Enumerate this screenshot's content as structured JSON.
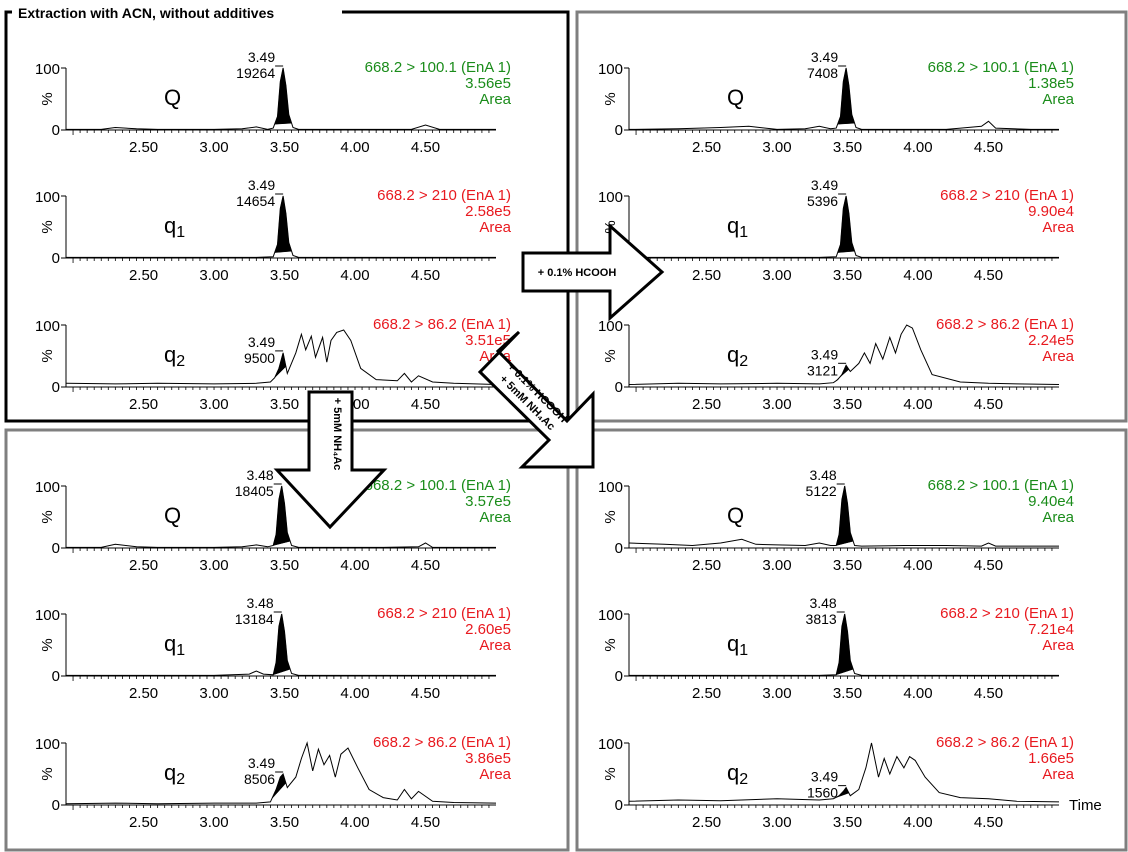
{
  "panel_title": "Extraction with ACN, without additives",
  "arrows": {
    "right": "+ 0.1% HCOOH",
    "down": "+ 5mM NH₄Ac",
    "diag_line1": "+ 0.1% HCOOH",
    "diag_line2": "+ 5mM NH₄Ac"
  },
  "colors": {
    "q_transition": "#1a8c1a",
    "q1q2_transition": "#e8191f",
    "trace": "#000000",
    "frame_black": "#000000",
    "frame_gray": "#7f7f7f"
  },
  "chart_data": [
    {
      "type": "line",
      "panel": "top-left",
      "traces": [
        {
          "label": "Q",
          "transition": "668.2 > 100.1 (EnA 1)",
          "area": "3.56e5",
          "area_word": "Area",
          "rt": "3.49",
          "height": "19264",
          "y_axis": {
            "ticks": [
              "100",
              "0"
            ],
            "label": "%"
          },
          "x_ticks": [
            "2.50",
            "3.00",
            "3.50",
            "4.00",
            "4.50"
          ],
          "show_time": false,
          "x": [
            1.95,
            2.2,
            2.3,
            2.45,
            2.6,
            2.8,
            3.0,
            3.2,
            3.3,
            3.38,
            3.42,
            3.45,
            3.47,
            3.49,
            3.51,
            3.53,
            3.56,
            3.6,
            3.8,
            4.0,
            4.2,
            4.4,
            4.5,
            4.6,
            4.8,
            5.0
          ],
          "y": [
            1,
            1,
            4,
            2,
            1,
            1,
            1,
            2,
            5,
            1,
            3,
            22,
            78,
            100,
            72,
            25,
            4,
            1,
            1,
            1,
            1,
            1,
            8,
            1,
            1,
            1
          ]
        },
        {
          "label": "q1",
          "transition": "668.2 > 210 (EnA 1)",
          "area": "2.58e5",
          "area_word": "Area",
          "rt": "3.49",
          "height": "14654",
          "y_axis": {
            "ticks": [
              "100",
              "0"
            ],
            "label": "%"
          },
          "x_ticks": [
            "2.50",
            "3.00",
            "3.50",
            "4.00",
            "4.50"
          ],
          "show_time": false,
          "x": [
            1.95,
            2.5,
            3.0,
            3.3,
            3.42,
            3.45,
            3.47,
            3.49,
            3.51,
            3.53,
            3.56,
            3.6,
            4.0,
            4.5,
            5.0
          ],
          "y": [
            1,
            1,
            1,
            1,
            2,
            22,
            80,
            100,
            72,
            25,
            4,
            1,
            1,
            1,
            1
          ]
        },
        {
          "label": "q2",
          "transition": "668.2 > 86.2 (EnA 1)",
          "area": "3.51e5",
          "area_word": "Area",
          "rt": "3.49",
          "height": "9500",
          "y_axis": {
            "ticks": [
              "100",
              "0"
            ],
            "label": "%"
          },
          "x_ticks": [
            "2.50",
            "3.00",
            "3.50",
            "4.00",
            "4.50"
          ],
          "show_time": false,
          "x": [
            1.95,
            2.3,
            2.6,
            3.0,
            3.3,
            3.4,
            3.43,
            3.46,
            3.49,
            3.52,
            3.58,
            3.62,
            3.65,
            3.69,
            3.72,
            3.77,
            3.8,
            3.83,
            3.87,
            3.92,
            3.97,
            4.04,
            4.15,
            4.3,
            4.35,
            4.4,
            4.45,
            4.55,
            4.7,
            5.0
          ],
          "y": [
            6,
            5,
            6,
            5,
            6,
            8,
            15,
            30,
            55,
            22,
            55,
            85,
            60,
            82,
            48,
            80,
            40,
            75,
            88,
            92,
            75,
            30,
            12,
            10,
            22,
            8,
            18,
            8,
            6,
            4
          ]
        }
      ]
    },
    {
      "type": "line",
      "panel": "top-right",
      "traces": [
        {
          "label": "Q",
          "transition": "668.2 > 100.1 (EnA 1)",
          "area": "1.38e5",
          "area_word": "Area",
          "rt": "3.49",
          "height": "7408",
          "y_axis": {
            "ticks": [
              "100",
              "0"
            ],
            "label": "%"
          },
          "x_ticks": [
            "2.50",
            "3.00",
            "3.50",
            "4.00",
            "4.50"
          ],
          "show_time": false,
          "x": [
            1.95,
            2.3,
            2.6,
            2.8,
            3.0,
            3.2,
            3.3,
            3.38,
            3.42,
            3.45,
            3.47,
            3.49,
            3.51,
            3.53,
            3.56,
            3.6,
            3.9,
            4.2,
            4.45,
            4.5,
            4.55,
            4.8,
            5.0
          ],
          "y": [
            1,
            2,
            4,
            6,
            1,
            2,
            6,
            2,
            3,
            22,
            78,
            100,
            72,
            25,
            4,
            1,
            1,
            1,
            6,
            14,
            3,
            1,
            1
          ]
        },
        {
          "label": "q1",
          "transition": "668.2 > 210 (EnA 1)",
          "area": "9.90e4",
          "area_word": "Area",
          "rt": "3.49",
          "height": "5396",
          "y_axis": {
            "ticks": [
              "100",
              "0"
            ],
            "label": "%"
          },
          "x_ticks": [
            "2.50",
            "3.00",
            "3.50",
            "4.00",
            "4.50"
          ],
          "show_time": false,
          "x": [
            1.95,
            2.5,
            3.0,
            3.3,
            3.42,
            3.45,
            3.47,
            3.49,
            3.51,
            3.53,
            3.56,
            3.6,
            4.0,
            4.5,
            5.0
          ],
          "y": [
            1,
            1,
            1,
            1,
            2,
            22,
            80,
            100,
            72,
            25,
            4,
            1,
            1,
            1,
            1
          ]
        },
        {
          "label": "q2",
          "transition": "668.2 > 86.2 (EnA 1)",
          "area": "2.24e5",
          "area_word": "Area",
          "rt": "3.49",
          "height": "3121",
          "y_axis": {
            "ticks": [
              "100",
              "0"
            ],
            "label": "%"
          },
          "x_ticks": [
            "2.50",
            "3.00",
            "3.50",
            "4.00",
            "4.50"
          ],
          "show_time": false,
          "x": [
            1.95,
            2.3,
            2.6,
            3.0,
            3.3,
            3.4,
            3.43,
            3.46,
            3.49,
            3.52,
            3.58,
            3.62,
            3.66,
            3.7,
            3.75,
            3.8,
            3.84,
            3.88,
            3.92,
            3.96,
            4.02,
            4.1,
            4.3,
            4.5,
            4.7,
            5.0
          ],
          "y": [
            4,
            6,
            5,
            6,
            5,
            7,
            12,
            20,
            35,
            25,
            38,
            55,
            38,
            70,
            45,
            80,
            55,
            85,
            100,
            95,
            60,
            20,
            8,
            6,
            5,
            4
          ]
        }
      ]
    },
    {
      "type": "line",
      "panel": "bottom-left",
      "traces": [
        {
          "label": "Q",
          "transition": "668.2 > 100.1 (EnA 1)",
          "area": "3.57e5",
          "area_word": "Area",
          "rt": "3.48",
          "height": "18405",
          "y_axis": {
            "ticks": [
              "100",
              "0"
            ],
            "label": "%"
          },
          "x_ticks": [
            "2.50",
            "3.00",
            "3.50",
            "4.00",
            "4.50"
          ],
          "show_time": false,
          "x": [
            1.95,
            2.2,
            2.3,
            2.45,
            2.6,
            2.8,
            3.0,
            3.2,
            3.3,
            3.38,
            3.42,
            3.44,
            3.46,
            3.48,
            3.5,
            3.52,
            3.55,
            3.6,
            3.9,
            4.2,
            4.45,
            4.5,
            4.55,
            4.8,
            5.0
          ],
          "y": [
            1,
            1,
            6,
            2,
            1,
            1,
            1,
            2,
            5,
            2,
            4,
            22,
            78,
            100,
            72,
            25,
            4,
            1,
            1,
            1,
            2,
            8,
            1,
            1,
            1
          ]
        },
        {
          "label": "q1",
          "transition": "668.2 > 210 (EnA 1)",
          "area": "2.60e5",
          "area_word": "Area",
          "rt": "3.48",
          "height": "13184",
          "y_axis": {
            "ticks": [
              "100",
              "0"
            ],
            "label": "%"
          },
          "x_ticks": [
            "2.50",
            "3.00",
            "3.50",
            "4.00",
            "4.50"
          ],
          "show_time": false,
          "x": [
            1.95,
            2.5,
            3.0,
            3.25,
            3.3,
            3.35,
            3.42,
            3.44,
            3.46,
            3.48,
            3.5,
            3.52,
            3.55,
            3.6,
            4.0,
            4.5,
            5.0
          ],
          "y": [
            1,
            1,
            1,
            3,
            8,
            3,
            2,
            22,
            80,
            100,
            72,
            25,
            4,
            1,
            1,
            1,
            1
          ]
        },
        {
          "label": "q2",
          "transition": "668.2 > 86.2 (EnA 1)",
          "area": "3.86e5",
          "area_word": "Area",
          "rt": "3.49",
          "height": "8506",
          "y_axis": {
            "ticks": [
              "100",
              "0"
            ],
            "label": "%"
          },
          "x_ticks": [
            "2.50",
            "3.00",
            "3.50",
            "4.00",
            "4.50"
          ],
          "show_time": false,
          "x": [
            1.95,
            2.3,
            2.6,
            3.0,
            3.3,
            3.4,
            3.44,
            3.47,
            3.49,
            3.52,
            3.58,
            3.62,
            3.66,
            3.7,
            3.74,
            3.78,
            3.82,
            3.86,
            3.9,
            3.95,
            4.02,
            4.1,
            4.2,
            4.3,
            4.35,
            4.4,
            4.45,
            4.55,
            4.7,
            5.0
          ],
          "y": [
            2,
            3,
            2,
            3,
            3,
            5,
            25,
            45,
            50,
            28,
            45,
            75,
            100,
            55,
            90,
            65,
            80,
            45,
            82,
            92,
            60,
            25,
            12,
            8,
            25,
            10,
            22,
            6,
            4,
            3
          ]
        }
      ]
    },
    {
      "type": "line",
      "panel": "bottom-right",
      "traces": [
        {
          "label": "Q",
          "transition": "668.2 > 100.1 (EnA 1)",
          "area": "9.40e4",
          "area_word": "Area",
          "rt": "3.48",
          "height": "5122",
          "y_axis": {
            "ticks": [
              "100",
              "0"
            ],
            "label": "%"
          },
          "x_ticks": [
            "2.50",
            "3.00",
            "3.50",
            "4.00",
            "4.50"
          ],
          "show_time": false,
          "x": [
            1.95,
            2.2,
            2.4,
            2.6,
            2.75,
            2.8,
            2.85,
            3.0,
            3.2,
            3.3,
            3.38,
            3.42,
            3.44,
            3.46,
            3.48,
            3.5,
            3.52,
            3.55,
            3.6,
            3.9,
            4.2,
            4.45,
            4.5,
            4.55,
            4.8,
            5.0
          ],
          "y": [
            8,
            6,
            4,
            8,
            14,
            10,
            6,
            5,
            4,
            8,
            4,
            4,
            22,
            78,
            100,
            72,
            25,
            4,
            3,
            4,
            4,
            3,
            8,
            3,
            3,
            3
          ]
        },
        {
          "label": "q1",
          "transition": "668.2 > 210 (EnA 1)",
          "area": "7.21e4",
          "area_word": "Area",
          "rt": "3.48",
          "height": "3813",
          "y_axis": {
            "ticks": [
              "100",
              "0"
            ],
            "label": "%"
          },
          "x_ticks": [
            "2.50",
            "3.00",
            "3.50",
            "4.00",
            "4.50"
          ],
          "show_time": false,
          "x": [
            1.95,
            2.5,
            3.0,
            3.3,
            3.42,
            3.44,
            3.46,
            3.48,
            3.5,
            3.52,
            3.55,
            3.6,
            4.0,
            4.5,
            5.0
          ],
          "y": [
            1,
            1,
            1,
            1,
            2,
            22,
            80,
            100,
            72,
            25,
            4,
            1,
            1,
            1,
            1
          ]
        },
        {
          "label": "q2",
          "transition": "668.2 > 86.2 (EnA 1)",
          "area": "1.66e5",
          "area_word": "Area",
          "rt": "3.49",
          "height": "1560",
          "y_axis": {
            "ticks": [
              "100",
              "0"
            ],
            "label": "%"
          },
          "x_ticks": [
            "2.50",
            "3.00",
            "3.50",
            "4.00",
            "4.50"
          ],
          "show_time": true,
          "time_label": "Time",
          "x": [
            1.95,
            2.3,
            2.6,
            3.0,
            3.3,
            3.4,
            3.44,
            3.47,
            3.49,
            3.52,
            3.58,
            3.63,
            3.67,
            3.72,
            3.76,
            3.8,
            3.85,
            3.9,
            3.94,
            3.98,
            4.05,
            4.15,
            4.3,
            4.5,
            4.7,
            5.0
          ],
          "y": [
            6,
            8,
            7,
            10,
            8,
            10,
            15,
            22,
            28,
            15,
            25,
            60,
            100,
            45,
            75,
            50,
            78,
            60,
            78,
            72,
            45,
            20,
            12,
            10,
            6,
            5
          ]
        }
      ]
    }
  ]
}
